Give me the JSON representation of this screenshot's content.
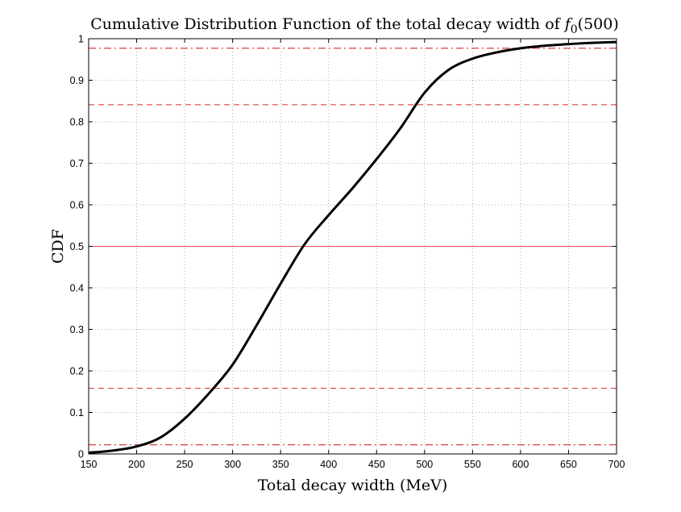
{
  "chart_data": {
    "type": "line",
    "title": "Cumulative Distribution Function of the total decay width of",
    "title_math": {
      "symbol": "f",
      "subscript": "0",
      "argument": "(500)"
    },
    "xlabel": "Total decay width (MeV)",
    "ylabel": "CDF",
    "xlim": [
      150,
      700
    ],
    "ylim": [
      0,
      1
    ],
    "xticks": [
      150,
      200,
      250,
      300,
      350,
      400,
      450,
      500,
      550,
      600,
      650,
      700
    ],
    "yticks": [
      0,
      0.1,
      0.2,
      0.3,
      0.4,
      0.5,
      0.6,
      0.7,
      0.8,
      0.9,
      1
    ],
    "ytick_labels": [
      "0",
      "0.1",
      "0.2",
      "0.3",
      "0.4",
      "0.5",
      "0.6",
      "0.7",
      "0.8",
      "0.9",
      "1"
    ],
    "grid": true,
    "series": [
      {
        "name": "CDF",
        "color": "#000000",
        "x": [
          150,
          175,
          200,
          225,
          250,
          275,
          300,
          325,
          350,
          375,
          400,
          425,
          450,
          475,
          500,
          525,
          550,
          575,
          600,
          625,
          650,
          675,
          700
        ],
        "y": [
          0.003,
          0.008,
          0.018,
          0.04,
          0.085,
          0.145,
          0.215,
          0.31,
          0.41,
          0.505,
          0.575,
          0.64,
          0.71,
          0.785,
          0.87,
          0.925,
          0.952,
          0.967,
          0.977,
          0.983,
          0.987,
          0.99,
          0.992
        ]
      }
    ],
    "reference_lines": [
      {
        "y": 0.5,
        "style": "solid",
        "color": "#e8525a"
      },
      {
        "y": 0.158,
        "style": "dashed",
        "color": "#d42a2a"
      },
      {
        "y": 0.841,
        "style": "dashed",
        "color": "#d42a2a"
      },
      {
        "y": 0.022,
        "style": "dashdot",
        "color": "#d42a2a"
      },
      {
        "y": 0.977,
        "style": "dashdot",
        "color": "#d42a2a"
      }
    ]
  }
}
